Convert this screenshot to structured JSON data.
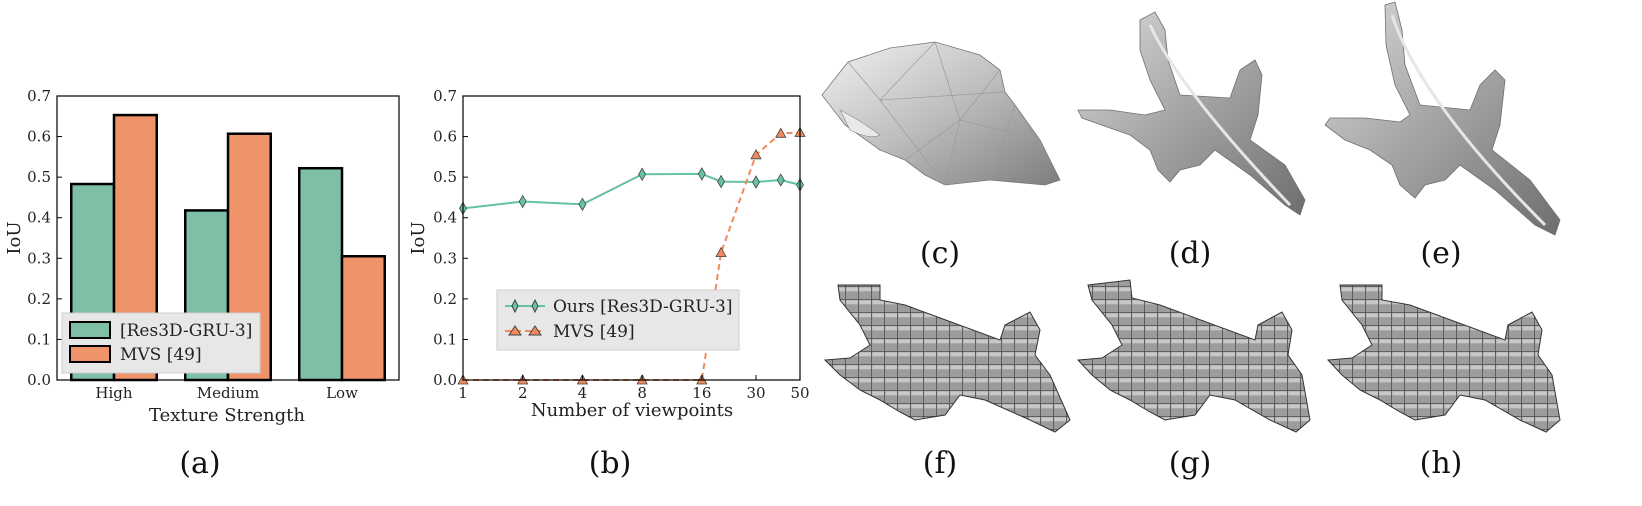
{
  "captions": [
    "(a)",
    "(b)",
    "(c)",
    "(d)",
    "(e)",
    "(f)",
    "(g)",
    "(h)"
  ],
  "colors": {
    "teal": "#7fbfa6",
    "orange": "#ef936a",
    "teal_line": "#66c2a5",
    "orange_line": "#f08a5d"
  },
  "chart_data": [
    {
      "type": "bar",
      "title": "",
      "xlabel": "Texture Strength",
      "ylabel": "IoU",
      "categories": [
        "High",
        "Medium",
        "Low"
      ],
      "ylim": [
        0,
        0.7
      ],
      "yticks": [
        "0.0",
        "0.1",
        "0.2",
        "0.3",
        "0.4",
        "0.5",
        "0.6",
        "0.7"
      ],
      "series": [
        {
          "name": "[Res3D-GRU-3]",
          "values": [
            0.483,
            0.418,
            0.522
          ]
        },
        {
          "name": "MVS [49]",
          "values": [
            0.653,
            0.607,
            0.305
          ]
        }
      ],
      "legend": "lower-left"
    },
    {
      "type": "line",
      "title": "",
      "xlabel": "Number of viewpoints",
      "ylabel": "IoU",
      "x_scale": "log",
      "xticks": [
        "1",
        "2",
        "4",
        "8",
        "16",
        "30",
        "50"
      ],
      "yticks": [
        "0.0",
        "0.1",
        "0.2",
        "0.3",
        "0.4",
        "0.5",
        "0.6",
        "0.7"
      ],
      "ylim": [
        0,
        0.7
      ],
      "x": [
        1,
        2,
        4,
        8,
        16,
        20,
        30,
        40,
        50
      ],
      "series": [
        {
          "name": "Ours [Res3D-GRU-3]",
          "values": [
            0.423,
            0.44,
            0.433,
            0.507,
            0.508,
            0.489,
            0.488,
            0.493,
            0.481
          ]
        },
        {
          "name": "MVS [49]",
          "values": [
            0.0,
            0.0,
            0.0,
            0.0,
            0.0,
            0.314,
            0.555,
            0.608,
            0.61
          ]
        }
      ],
      "legend": "center-left"
    }
  ]
}
